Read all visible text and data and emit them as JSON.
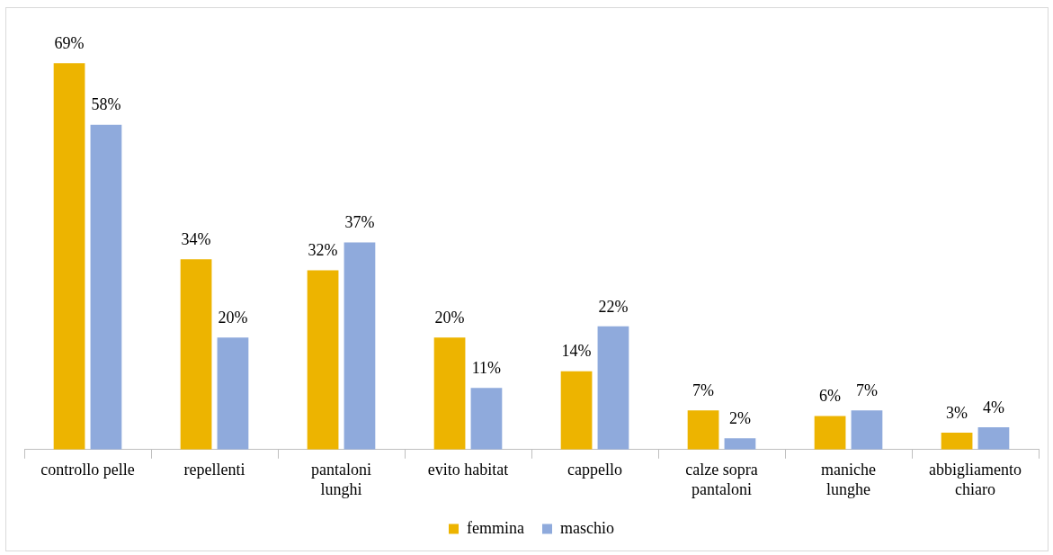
{
  "chart_data": {
    "type": "bar",
    "categories": [
      "controllo pelle",
      "repellenti",
      "pantaloni lunghi",
      "evito habitat",
      "cappello",
      "calze sopra pantaloni",
      "maniche lunghe",
      "abbigliamento chiaro"
    ],
    "series": [
      {
        "name": "femmina",
        "color": "#edb400",
        "values": [
          69,
          34,
          32,
          20,
          14,
          7,
          6,
          3
        ],
        "value_labels": [
          "69%",
          "34%",
          "32%",
          "20%",
          "14%",
          "7%",
          "6%",
          "3%"
        ]
      },
      {
        "name": "maschio",
        "color": "#8faadc",
        "values": [
          58,
          20,
          37,
          11,
          22,
          2,
          7,
          4
        ],
        "value_labels": [
          "58%",
          "20%",
          "37%",
          "11%",
          "22%",
          "2%",
          "7%",
          "4%"
        ]
      }
    ],
    "legend": "bottom",
    "grid": false
  }
}
